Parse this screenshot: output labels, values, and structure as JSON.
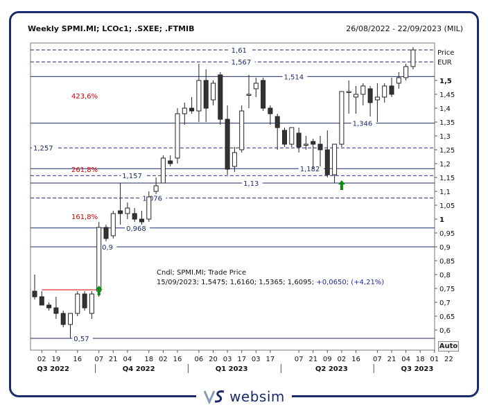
{
  "header": {
    "title": "Weekly SPMI.MI; LCOc1; .SXEE; .FTMIB",
    "date_range": "26/08/2022 - 22/09/2023 (MIL)"
  },
  "logo": {
    "text": "websim",
    "icon": "vs-logo-icon"
  },
  "auto_label": "Auto",
  "colors": {
    "frame": "#1a2a6c",
    "level": "#1a2a6c",
    "fib": "#d00000",
    "arrow": "#0a8a0a",
    "bear": "#333333",
    "bull": "#ffffff"
  },
  "chart_data": {
    "type": "candlestick",
    "ylabel": "Price\nEUR",
    "ylim": [
      0.56,
      1.64
    ],
    "grid": false,
    "yticks": [
      {
        "v": 1.5,
        "t": "1,5"
      },
      {
        "v": 1.45,
        "t": "1,45"
      },
      {
        "v": 1.4,
        "t": "1,4"
      },
      {
        "v": 1.35,
        "t": "1,35"
      },
      {
        "v": 1.3,
        "t": "1,3"
      },
      {
        "v": 1.25,
        "t": "1,25"
      },
      {
        "v": 1.2,
        "t": "1,2"
      },
      {
        "v": 1.15,
        "t": "1,15"
      },
      {
        "v": 1.1,
        "t": "1,1"
      },
      {
        "v": 1.05,
        "t": "1,05"
      },
      {
        "v": 1.0,
        "t": "1"
      },
      {
        "v": 0.95,
        "t": "0,95"
      },
      {
        "v": 0.9,
        "t": "0,9"
      },
      {
        "v": 0.85,
        "t": "0,85"
      },
      {
        "v": 0.8,
        "t": "0,8"
      },
      {
        "v": 0.75,
        "t": "0,75"
      },
      {
        "v": 0.7,
        "t": "0,7"
      },
      {
        "v": 0.65,
        "t": "0,65"
      },
      {
        "v": 0.6,
        "t": "0,6"
      }
    ],
    "xticks": [
      {
        "i": 1,
        "t": "02"
      },
      {
        "i": 3,
        "t": "19"
      },
      {
        "i": 6,
        "t": "16"
      },
      {
        "i": 9,
        "t": "07"
      },
      {
        "i": 11,
        "t": "21"
      },
      {
        "i": 13,
        "t": "04"
      },
      {
        "i": 16,
        "t": "18"
      },
      {
        "i": 18,
        "t": "02"
      },
      {
        "i": 20,
        "t": "16"
      },
      {
        "i": 23,
        "t": "06"
      },
      {
        "i": 25,
        "t": "20"
      },
      {
        "i": 27,
        "t": "03"
      },
      {
        "i": 29,
        "t": "17"
      },
      {
        "i": 31,
        "t": "03"
      },
      {
        "i": 33,
        "t": "17"
      },
      {
        "i": 37,
        "t": "07"
      },
      {
        "i": 39,
        "t": "21"
      },
      {
        "i": 41,
        "t": "09"
      },
      {
        "i": 43,
        "t": "02"
      },
      {
        "i": 45,
        "t": "16"
      },
      {
        "i": 48,
        "t": "07"
      },
      {
        "i": 50,
        "t": "21"
      },
      {
        "i": 52,
        "t": "04"
      },
      {
        "i": 54,
        "t": "18"
      },
      {
        "i": 56,
        "t": "01"
      },
      {
        "i": 58,
        "t": "22"
      }
    ],
    "quarters": [
      {
        "i": 2,
        "t": "Q3 2022"
      },
      {
        "i": 14,
        "t": "Q4 2022"
      },
      {
        "i": 27,
        "t": "Q1 2023"
      },
      {
        "i": 41,
        "t": "Q2 2023"
      },
      {
        "i": 53,
        "t": "Q3 2023"
      }
    ],
    "quarter_dividers": [
      8.5,
      21.5,
      34.5,
      47.5
    ],
    "candles": [
      {
        "o": 0.74,
        "h": 0.8,
        "l": 0.71,
        "c": 0.72
      },
      {
        "o": 0.72,
        "h": 0.74,
        "l": 0.69,
        "c": 0.69
      },
      {
        "o": 0.69,
        "h": 0.7,
        "l": 0.67,
        "c": 0.68
      },
      {
        "o": 0.68,
        "h": 0.72,
        "l": 0.64,
        "c": 0.66
      },
      {
        "o": 0.66,
        "h": 0.67,
        "l": 0.61,
        "c": 0.62
      },
      {
        "o": 0.62,
        "h": 0.66,
        "l": 0.57,
        "c": 0.66
      },
      {
        "o": 0.66,
        "h": 0.74,
        "l": 0.65,
        "c": 0.73
      },
      {
        "o": 0.73,
        "h": 0.74,
        "l": 0.67,
        "c": 0.68
      },
      {
        "o": 0.66,
        "h": 0.74,
        "l": 0.64,
        "c": 0.73
      },
      {
        "o": 0.74,
        "h": 0.99,
        "l": 0.72,
        "c": 0.97
      },
      {
        "o": 0.97,
        "h": 0.98,
        "l": 0.92,
        "c": 0.93
      },
      {
        "o": 0.94,
        "h": 1.03,
        "l": 0.93,
        "c": 1.02
      },
      {
        "o": 1.03,
        "h": 1.13,
        "l": 0.98,
        "c": 1.02
      },
      {
        "o": 1.02,
        "h": 1.06,
        "l": 1.0,
        "c": 1.04
      },
      {
        "o": 1.02,
        "h": 1.04,
        "l": 0.99,
        "c": 1.0
      },
      {
        "o": 1.0,
        "h": 1.03,
        "l": 0.98,
        "c": 0.99
      },
      {
        "o": 1.0,
        "h": 1.1,
        "l": 0.99,
        "c": 1.08
      },
      {
        "o": 1.1,
        "h": 1.15,
        "l": 1.09,
        "c": 1.12
      },
      {
        "o": 1.13,
        "h": 1.23,
        "l": 1.13,
        "c": 1.22
      },
      {
        "o": 1.21,
        "h": 1.23,
        "l": 1.19,
        "c": 1.2
      },
      {
        "o": 1.22,
        "h": 1.4,
        "l": 1.2,
        "c": 1.38
      },
      {
        "o": 1.38,
        "h": 1.42,
        "l": 1.34,
        "c": 1.4
      },
      {
        "o": 1.4,
        "h": 1.44,
        "l": 1.38,
        "c": 1.39
      },
      {
        "o": 1.39,
        "h": 1.56,
        "l": 1.35,
        "c": 1.5
      },
      {
        "o": 1.5,
        "h": 1.54,
        "l": 1.35,
        "c": 1.4
      },
      {
        "o": 1.43,
        "h": 1.5,
        "l": 1.41,
        "c": 1.49
      },
      {
        "o": 1.52,
        "h": 1.53,
        "l": 1.34,
        "c": 1.36
      },
      {
        "o": 1.36,
        "h": 1.41,
        "l": 1.16,
        "c": 1.18
      },
      {
        "o": 1.19,
        "h": 1.26,
        "l": 1.17,
        "c": 1.24
      },
      {
        "o": 1.25,
        "h": 1.41,
        "l": 1.24,
        "c": 1.39
      },
      {
        "o": 1.45,
        "h": 1.52,
        "l": 1.4,
        "c": 1.45
      },
      {
        "o": 1.47,
        "h": 1.51,
        "l": 1.44,
        "c": 1.49
      },
      {
        "o": 1.5,
        "h": 1.51,
        "l": 1.39,
        "c": 1.4
      },
      {
        "o": 1.4,
        "h": 1.41,
        "l": 1.34,
        "c": 1.38
      },
      {
        "o": 1.37,
        "h": 1.38,
        "l": 1.25,
        "c": 1.33
      },
      {
        "o": 1.32,
        "h": 1.33,
        "l": 1.26,
        "c": 1.27
      },
      {
        "o": 1.27,
        "h": 1.33,
        "l": 1.26,
        "c": 1.33
      },
      {
        "o": 1.31,
        "h": 1.33,
        "l": 1.24,
        "c": 1.26
      },
      {
        "o": 1.27,
        "h": 1.3,
        "l": 1.25,
        "c": 1.27
      },
      {
        "o": 1.28,
        "h": 1.29,
        "l": 1.18,
        "c": 1.27
      },
      {
        "o": 1.27,
        "h": 1.3,
        "l": 1.19,
        "c": 1.25
      },
      {
        "o": 1.25,
        "h": 1.32,
        "l": 1.15,
        "c": 1.16
      },
      {
        "o": 1.16,
        "h": 1.27,
        "l": 1.13,
        "c": 1.27
      },
      {
        "o": 1.27,
        "h": 1.46,
        "l": 1.26,
        "c": 1.46
      },
      {
        "o": 1.46,
        "h": 1.5,
        "l": 1.38,
        "c": 1.46
      },
      {
        "o": 1.44,
        "h": 1.48,
        "l": 1.38,
        "c": 1.45
      },
      {
        "o": 1.45,
        "h": 1.49,
        "l": 1.41,
        "c": 1.48
      },
      {
        "o": 1.47,
        "h": 1.48,
        "l": 1.37,
        "c": 1.42
      },
      {
        "o": 1.43,
        "h": 1.49,
        "l": 1.35,
        "c": 1.44
      },
      {
        "o": 1.44,
        "h": 1.49,
        "l": 1.42,
        "c": 1.48
      },
      {
        "o": 1.48,
        "h": 1.51,
        "l": 1.44,
        "c": 1.45
      },
      {
        "o": 1.49,
        "h": 1.53,
        "l": 1.47,
        "c": 1.51
      },
      {
        "o": 1.51,
        "h": 1.56,
        "l": 1.5,
        "c": 1.55
      },
      {
        "o": 1.55,
        "h": 1.62,
        "l": 1.54,
        "c": 1.61
      }
    ],
    "levels": [
      {
        "v": 1.61,
        "t": "1,61",
        "style": "dashed",
        "label_x": 0.49
      },
      {
        "v": 1.567,
        "t": "1,567",
        "style": "dashed",
        "label_x": 0.49
      },
      {
        "v": 1.514,
        "t": "1,514",
        "style": "solid",
        "label_x": 0.62
      },
      {
        "v": 1.346,
        "t": "1,346",
        "style": "solid",
        "label_x": 0.79
      },
      {
        "v": 1.257,
        "t": "1,257",
        "style": "dashed",
        "label_x": 0.0
      },
      {
        "v": 1.182,
        "t": "1,182",
        "style": "solid",
        "label_x": 0.66
      },
      {
        "v": 1.157,
        "t": "1,157",
        "style": "dashed",
        "label_x": 0.22
      },
      {
        "v": 1.13,
        "t": "1,13",
        "style": "solid",
        "label_x": 0.52
      },
      {
        "v": 1.076,
        "t": "1,076",
        "style": "dashed",
        "label_x": 0.27
      },
      {
        "v": 0.968,
        "t": "0,968",
        "style": "solid",
        "label_x": 0.23
      },
      {
        "v": 0.9,
        "t": "0,9",
        "style": "solid",
        "label_x": 0.17
      },
      {
        "v": 0.57,
        "t": "0,57",
        "style": "solid",
        "label_x": 0.1
      }
    ],
    "fib_labels": [
      {
        "v": 1.445,
        "t": "423,6%"
      },
      {
        "v": 1.18,
        "t": "261,8%"
      },
      {
        "v": 1.01,
        "t": "161,8%"
      }
    ],
    "red_line": {
      "v": 0.745,
      "from": 1,
      "to": 9
    },
    "arrows": [
      {
        "i": 9,
        "v": 0.73
      },
      {
        "i": 43,
        "v": 1.11
      }
    ],
    "info": {
      "line1": "Cndl; SPMI.MI; Trade Price",
      "line2_prefix": "15/09/2023; 1,5475; 1,6160; 1,5365; 1,6095;",
      "line2_change": "+0,0650; (+4,21%)"
    },
    "price_labels": [
      "Price",
      "EUR"
    ]
  }
}
